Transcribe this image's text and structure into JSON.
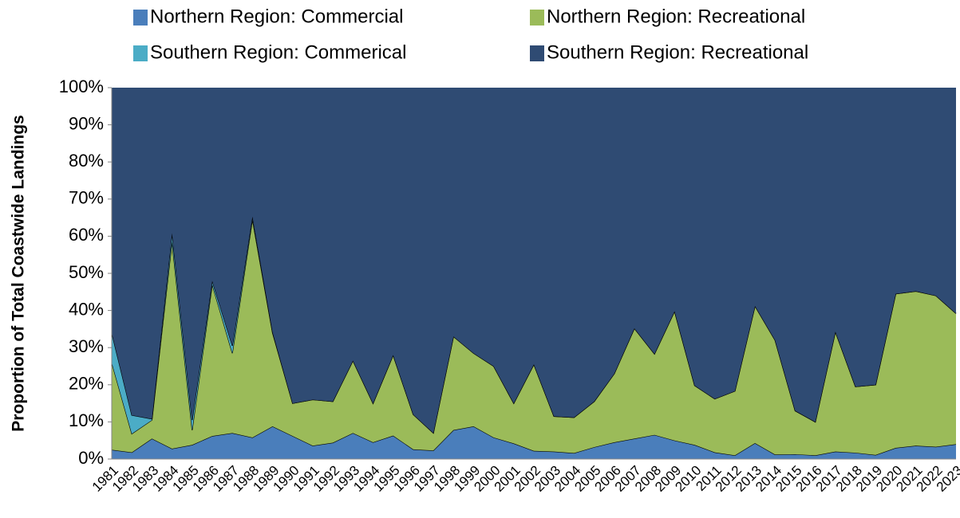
{
  "chart_data": {
    "type": "stacked_area",
    "y_label": "Proportion of Total Coastwide Landings",
    "categories": [
      "1981",
      "1982",
      "1983",
      "1984",
      "1985",
      "1986",
      "1987",
      "1988",
      "1989",
      "1990",
      "1991",
      "1992",
      "1993",
      "1994",
      "1995",
      "1996",
      "1997",
      "1998",
      "1999",
      "2000",
      "2001",
      "2002",
      "2003",
      "2004",
      "2005",
      "2006",
      "2007",
      "2008",
      "2009",
      "2010",
      "2011",
      "2012",
      "2013",
      "2014",
      "2015",
      "2016",
      "2017",
      "2018",
      "2019",
      "2020",
      "2021",
      "2022",
      "2023"
    ],
    "series": [
      {
        "name": "Northern Region: Commercial",
        "color": "#4a7ebb",
        "values": [
          2.5,
          1.8,
          5.5,
          2.8,
          3.8,
          6.2,
          7,
          5.8,
          8.8,
          6.2,
          3.6,
          4.4,
          7,
          4.5,
          6.3,
          2.6,
          2.3,
          7.8,
          8.8,
          5.8,
          4.2,
          2.2,
          2,
          1.6,
          3.2,
          4.5,
          5.5,
          6.5,
          5,
          3.8,
          1.8,
          1,
          4.3,
          1.2,
          1.3,
          1,
          2,
          1.7,
          1.1,
          3,
          3.6,
          3.3,
          4
        ]
      },
      {
        "name": "Northern Region: Recreational",
        "color": "#9bbb59",
        "values": [
          23.5,
          5,
          5,
          55.7,
          4,
          40.8,
          21.5,
          58.7,
          25.2,
          8.8,
          12.4,
          11.1,
          19.5,
          10.5,
          21.7,
          9.4,
          4.7,
          25.2,
          19.7,
          19.2,
          10.8,
          23.3,
          9.5,
          9.6,
          12.3,
          18.5,
          29.7,
          21.8,
          34.8,
          16,
          14.4,
          17.3,
          36.9,
          30.8,
          11.7,
          9,
          32.3,
          17.8,
          18.9,
          41.5,
          41.6,
          40.7,
          35.2
        ]
      },
      {
        "name": "Southern Region: Commerical",
        "color": "#4bacc6",
        "values": [
          8,
          5,
          0.3,
          2.3,
          2.7,
          1,
          2,
          0.8,
          0.2,
          0,
          0,
          0,
          0,
          0,
          0,
          0,
          0,
          0,
          0,
          0,
          0,
          0,
          0,
          0,
          0,
          0,
          0,
          0,
          0,
          0,
          0,
          0,
          0,
          0,
          0,
          0,
          0,
          0,
          0,
          0,
          0,
          0,
          0
        ]
      },
      {
        "name": "Southern Region: Recreational",
        "color": "#2f4b73",
        "values": [
          66,
          88.2,
          89.2,
          39.2,
          89.5,
          52,
          69.5,
          34.7,
          65.8,
          85,
          84,
          84.5,
          73.5,
          85,
          72,
          88,
          93,
          67,
          71.5,
          75,
          85,
          74.5,
          88.5,
          88.8,
          84.5,
          77,
          64.8,
          71.7,
          60.2,
          80.2,
          83.8,
          81.7,
          58.8,
          68,
          87,
          90,
          65.7,
          80.5,
          80,
          55.5,
          54.8,
          56,
          60.8
        ]
      }
    ],
    "ylim": [
      0,
      100
    ],
    "yticks": [
      {
        "value": 0,
        "label": "0%"
      },
      {
        "value": 10,
        "label": "10%"
      },
      {
        "value": 20,
        "label": "20%"
      },
      {
        "value": 30,
        "label": "30%"
      },
      {
        "value": 40,
        "label": "40%"
      },
      {
        "value": 50,
        "label": "50%"
      },
      {
        "value": 60,
        "label": "60%"
      },
      {
        "value": 70,
        "label": "70%"
      },
      {
        "value": 80,
        "label": "80%"
      },
      {
        "value": 90,
        "label": "90%"
      },
      {
        "value": 100,
        "label": "100%"
      }
    ]
  }
}
